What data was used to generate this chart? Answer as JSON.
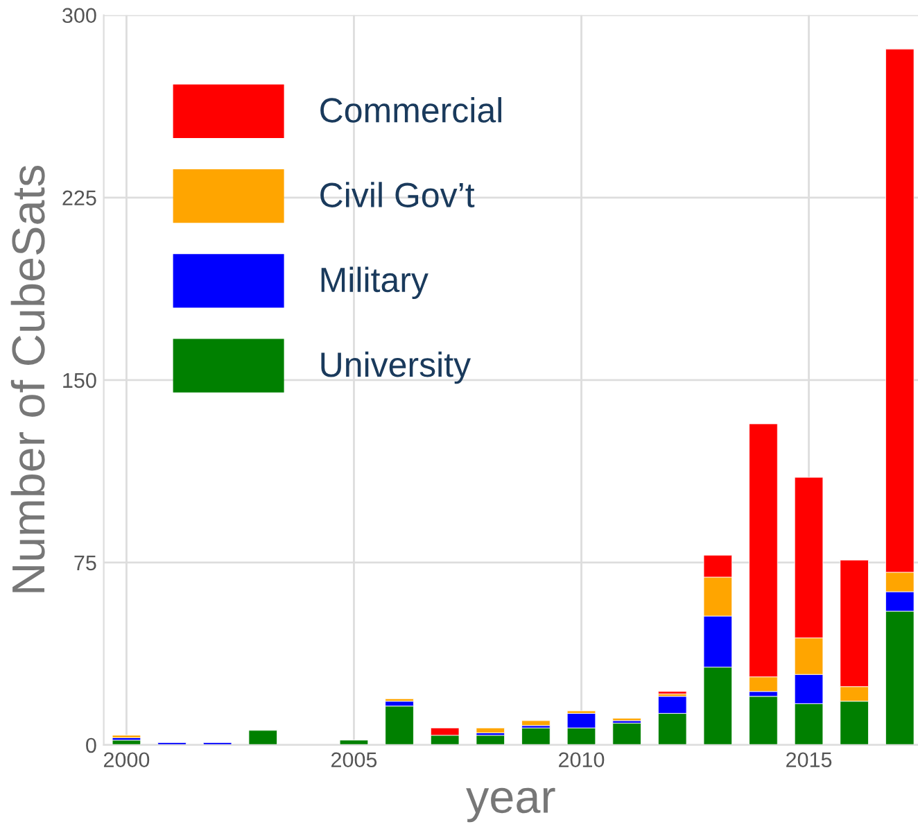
{
  "chart_data": {
    "type": "bar",
    "stacked": true,
    "xlabel": "year",
    "ylabel": "Number of CubeSats",
    "x": [
      2000,
      2001,
      2002,
      2003,
      2004,
      2005,
      2006,
      2007,
      2008,
      2009,
      2010,
      2011,
      2012,
      2013,
      2014,
      2015,
      2016,
      2017
    ],
    "series": [
      {
        "name": "University",
        "color": "#008000",
        "values": [
          2,
          0,
          0,
          6,
          0,
          2,
          16,
          4,
          4,
          7,
          7,
          9,
          13,
          32,
          20,
          17,
          18,
          55
        ]
      },
      {
        "name": "Military",
        "color": "#0000ff",
        "values": [
          1,
          1,
          1,
          0,
          0,
          0,
          2,
          0,
          1,
          1,
          6,
          1,
          7,
          21,
          2,
          12,
          0,
          8
        ]
      },
      {
        "name": "Civil Gov’t",
        "color": "#ffa500",
        "values": [
          1,
          0,
          0,
          0,
          0,
          0,
          1,
          0,
          2,
          2,
          1,
          1,
          1,
          16,
          6,
          15,
          6,
          8
        ]
      },
      {
        "name": "Commercial",
        "color": "#ff0000",
        "values": [
          0,
          0,
          0,
          0,
          0,
          0,
          0,
          3,
          0,
          0,
          0,
          0,
          1,
          9,
          104,
          66,
          52,
          215
        ]
      }
    ],
    "xlim": [
      1999.5,
      2017.4
    ],
    "xticks": [
      2000,
      2005,
      2010,
      2015
    ],
    "ylim": [
      0,
      300
    ],
    "yticks": [
      0,
      75,
      150,
      225,
      300
    ],
    "grid": true,
    "legend": "top left"
  }
}
